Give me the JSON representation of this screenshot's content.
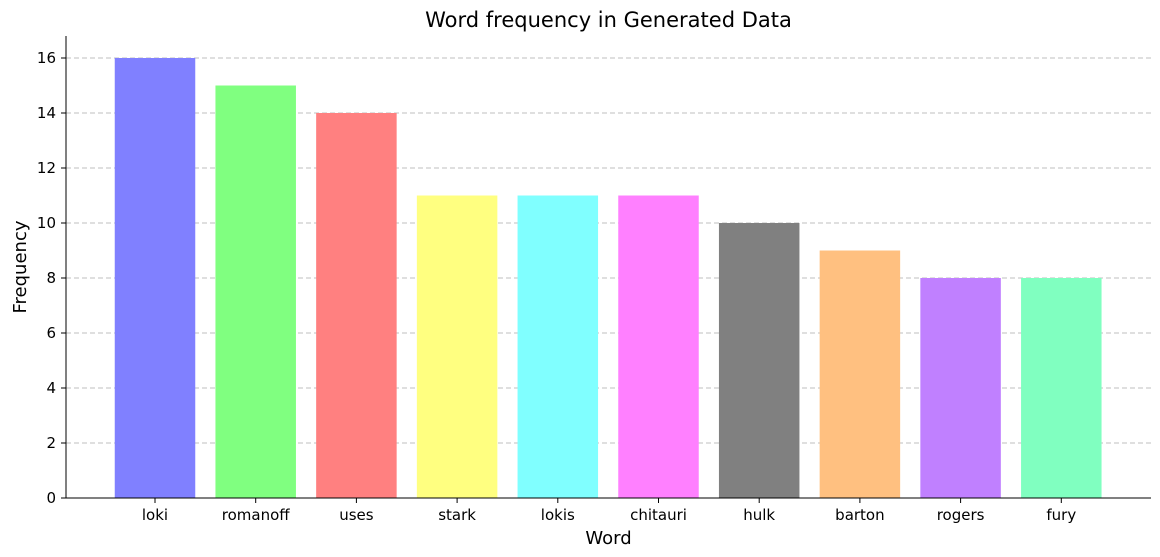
{
  "chart_data": {
    "type": "bar",
    "title": "Word frequency in Generated Data",
    "xlabel": "Word",
    "ylabel": "Frequency",
    "categories": [
      "loki",
      "romanoff",
      "uses",
      "stark",
      "lokis",
      "chitauri",
      "hulk",
      "barton",
      "rogers",
      "fury"
    ],
    "values": [
      16,
      15,
      14,
      11,
      11,
      11,
      10,
      9,
      8,
      8
    ],
    "colors": [
      "#8080ff",
      "#80ff80",
      "#ff8080",
      "#ffff80",
      "#80ffff",
      "#ff80ff",
      "#808080",
      "#ffc080",
      "#c080ff",
      "#80ffc0"
    ],
    "ylim": [
      0,
      16.8
    ],
    "yticks": [
      0,
      2,
      4,
      6,
      8,
      10,
      12,
      14,
      16
    ],
    "grid": "y-dashed",
    "legend": "none"
  }
}
